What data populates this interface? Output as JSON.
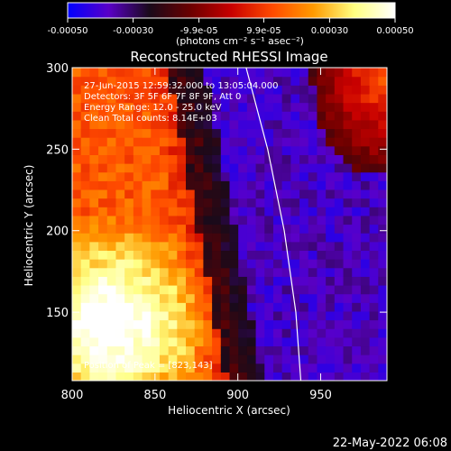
{
  "colorbar": {
    "ticks": [
      "-0.00050",
      "-0.00030",
      "-9.9e-05",
      "9.9e-05",
      "0.00030",
      "0.00050"
    ],
    "tick_values": [
      -0.0005,
      -0.0003,
      -9.9e-05,
      9.9e-05,
      0.0003,
      0.0005
    ],
    "range": [
      -0.0005,
      0.0005
    ],
    "units": "(photons cm⁻² s⁻¹ asec⁻²)",
    "colormap": [
      "#0000ff",
      "#5a00c8",
      "#1a0a1a",
      "#6b0000",
      "#c80000",
      "#ff4a00",
      "#ff9a00",
      "#ffff80",
      "#ffffff"
    ]
  },
  "annotations": {
    "line1": "27-Jun-2015 12:59:32.000 to 13:05:04.000",
    "line2": "Detectors: 3F 5F 6F 7F 8F 9F, Att 0",
    "line3": "Energy Range: 12.0 - 25.0 keV",
    "line4": "Clean     Total counts: 8.14E+03",
    "peak": "Position of Peak = [823,143]"
  },
  "footer_timestamp": "22-May-2022 06:08",
  "chart_data": {
    "type": "heatmap",
    "title": "Reconstructed RHESSI Image",
    "xlabel": "Heliocentric X (arcsec)",
    "ylabel": "Heliocentric Y (arcsec)",
    "xlim": [
      800,
      990
    ],
    "ylim": [
      108,
      300
    ],
    "xticks": [
      800,
      850,
      900,
      950
    ],
    "yticks": [
      150,
      200,
      250,
      300
    ],
    "colors": {
      "bright": "#ffff90",
      "hot": "#ff8c00",
      "red": "#e01000",
      "dark": "#1e0a24",
      "purple": "#6a1ad8",
      "blue": "#3a20ff",
      "limb": "#ffffff"
    },
    "regions": [
      {
        "name": "bright source (bottom-left)",
        "approx_center": [
          823,
          143
        ],
        "level": "max"
      },
      {
        "name": "dark band",
        "path": [
          [
            870,
            300
          ],
          [
            880,
            220
          ],
          [
            905,
            108
          ]
        ],
        "level": "near-zero"
      },
      {
        "name": "blue/purple region",
        "approx_center": [
          920,
          230
        ],
        "level": "negative"
      },
      {
        "name": "hot region (top-right)",
        "approx_center": [
          975,
          290
        ],
        "level": "positive"
      }
    ],
    "limb": [
      [
        905,
        300
      ],
      [
        918,
        250
      ],
      [
        928,
        200
      ],
      [
        935,
        150
      ],
      [
        938,
        108
      ]
    ],
    "peak": [
      823,
      143
    ]
  }
}
